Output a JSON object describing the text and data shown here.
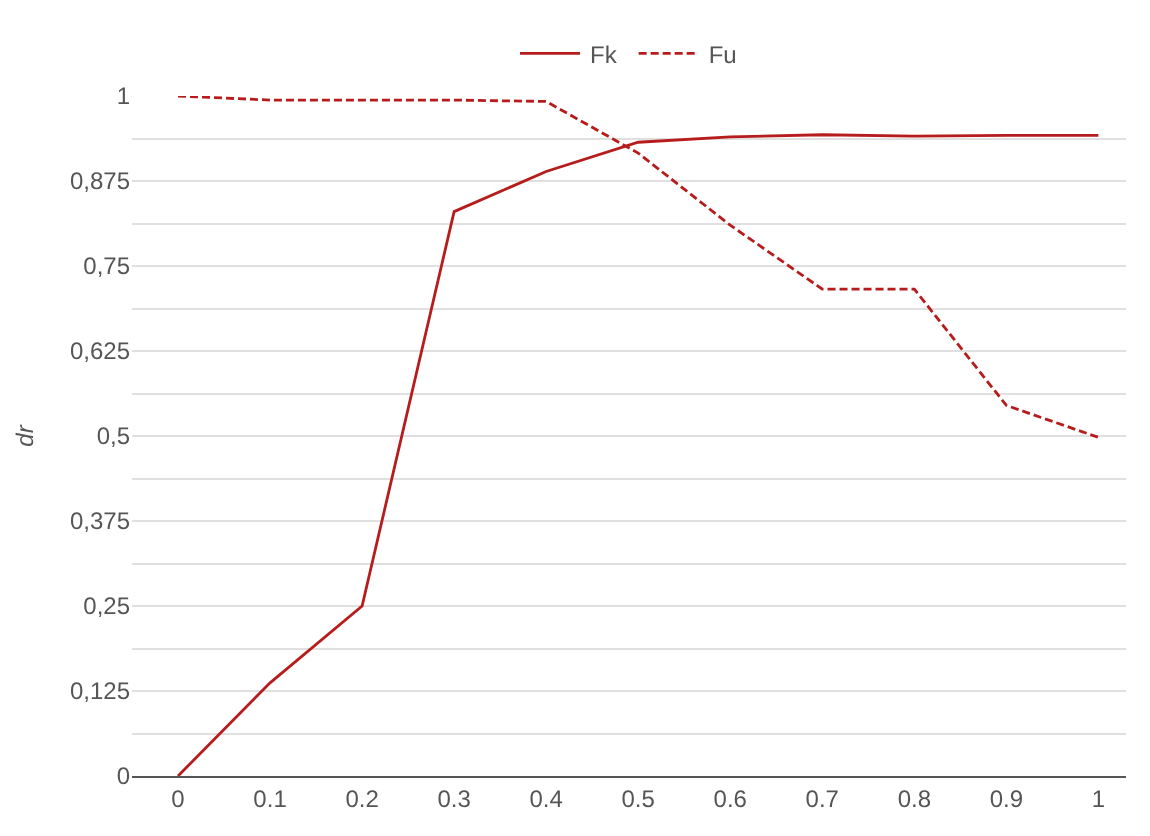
{
  "chart_data": {
    "type": "line",
    "ylabel": "dr",
    "x": [
      0,
      0.1,
      0.2,
      0.3,
      0.4,
      0.5,
      0.6,
      0.7,
      0.8,
      0.9,
      1
    ],
    "series": [
      {
        "name": "Fk",
        "color": "#b71c1c",
        "line_style": "solid",
        "values": [
          0,
          0.137,
          0.25,
          0.83,
          0.889,
          0.932,
          0.94,
          0.943,
          0.941,
          0.942,
          0.942
        ]
      },
      {
        "name": "Fu",
        "color": "#b71c1c",
        "line_style": "dashed",
        "values": [
          1,
          0.994,
          0.994,
          0.994,
          0.992,
          0.916,
          0.81,
          0.716,
          0.716,
          0.545,
          0.498
        ]
      }
    ],
    "xlim": [
      -0.05,
      1.03
    ],
    "ylim": [
      0,
      1.0
    ],
    "xticks": [
      0,
      0.1,
      0.2,
      0.3,
      0.4,
      0.5,
      0.6,
      0.7,
      0.8,
      0.9,
      1
    ],
    "yticks": [
      0,
      {
        "value": 0.0625,
        "label": null
      },
      {
        "value": 0.125,
        "label": "0,125"
      },
      {
        "value": 0.1875,
        "label": null
      },
      {
        "value": 0.25,
        "label": "0,25"
      },
      {
        "value": 0.3125,
        "label": null
      },
      {
        "value": 0.375,
        "label": "0,375"
      },
      {
        "value": 0.4375,
        "label": null
      },
      {
        "value": 0.5,
        "label": "0,5"
      },
      {
        "value": 0.5625,
        "label": null
      },
      {
        "value": 0.625,
        "label": "0,625"
      },
      {
        "value": 0.6875,
        "label": null
      },
      {
        "value": 0.75,
        "label": "0,75"
      },
      {
        "value": 0.8125,
        "label": null
      },
      {
        "value": 0.875,
        "label": "0,875"
      },
      {
        "value": 0.9375,
        "label": null
      },
      1
    ],
    "grid": "y",
    "legend": "top",
    "marker": "none"
  }
}
